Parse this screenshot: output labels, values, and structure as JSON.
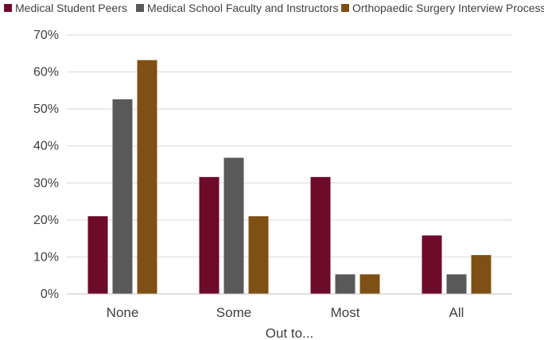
{
  "chart_data": {
    "type": "bar",
    "categories": [
      "None",
      "Some",
      "Most",
      "All"
    ],
    "series": [
      {
        "name": "Medical Student Peers",
        "color": "#6E0A2A",
        "values": [
          21,
          31.6,
          31.6,
          15.8
        ]
      },
      {
        "name": "Medical School Faculty and Instructors",
        "color": "#595959",
        "values": [
          52.6,
          36.8,
          5.3,
          5.3
        ]
      },
      {
        "name": "Orthopaedic Surgery Interview Process",
        "color": "#7F5014",
        "values": [
          63.2,
          21,
          5.3,
          10.5
        ]
      }
    ],
    "xlabel": "Out to...",
    "ylabel": "",
    "ylim": [
      0,
      70
    ],
    "yticks": [
      0,
      10,
      20,
      30,
      40,
      50,
      60,
      70
    ],
    "ytick_format": "percent",
    "grid": true,
    "legend_position": "top"
  }
}
